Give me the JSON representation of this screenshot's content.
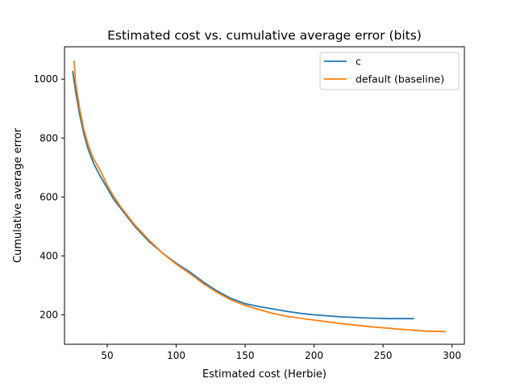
{
  "chart_data": {
    "type": "line",
    "title": "Estimated cost vs. cumulative average error (bits)",
    "xlabel": "Estimated cost (Herbie)",
    "ylabel": "Cumulative average error",
    "xlim": [
      19,
      309
    ],
    "ylim": [
      100,
      1110
    ],
    "xticks": [
      50,
      100,
      150,
      200,
      250,
      300
    ],
    "yticks": [
      200,
      400,
      600,
      800,
      1000
    ],
    "grid": false,
    "legend_position": "top-right",
    "series": [
      {
        "name": "c",
        "color": "#1f77b4",
        "points": [
          [
            25,
            1025
          ],
          [
            27,
            960
          ],
          [
            30,
            880
          ],
          [
            33,
            815
          ],
          [
            36,
            765
          ],
          [
            40,
            715
          ],
          [
            45,
            670
          ],
          [
            50,
            630
          ],
          [
            55,
            590
          ],
          [
            60,
            560
          ],
          [
            65,
            530
          ],
          [
            70,
            500
          ],
          [
            75,
            475
          ],
          [
            80,
            450
          ],
          [
            90,
            410
          ],
          [
            100,
            375
          ],
          [
            110,
            345
          ],
          [
            120,
            310
          ],
          [
            130,
            280
          ],
          [
            140,
            255
          ],
          [
            150,
            238
          ],
          [
            160,
            228
          ],
          [
            170,
            220
          ],
          [
            180,
            212
          ],
          [
            190,
            205
          ],
          [
            200,
            200
          ],
          [
            220,
            193
          ],
          [
            240,
            189
          ],
          [
            255,
            187
          ],
          [
            272,
            187
          ]
        ]
      },
      {
        "name": "default (baseline)",
        "color": "#ff7f0e",
        "points": [
          [
            26,
            1060
          ],
          [
            27,
            990
          ],
          [
            30,
            900
          ],
          [
            33,
            830
          ],
          [
            36,
            780
          ],
          [
            40,
            730
          ],
          [
            45,
            690
          ],
          [
            50,
            640
          ],
          [
            55,
            600
          ],
          [
            60,
            565
          ],
          [
            65,
            535
          ],
          [
            70,
            505
          ],
          [
            75,
            480
          ],
          [
            80,
            455
          ],
          [
            90,
            410
          ],
          [
            100,
            372
          ],
          [
            110,
            340
          ],
          [
            120,
            305
          ],
          [
            130,
            275
          ],
          [
            140,
            250
          ],
          [
            150,
            232
          ],
          [
            160,
            218
          ],
          [
            170,
            205
          ],
          [
            180,
            195
          ],
          [
            200,
            182
          ],
          [
            220,
            170
          ],
          [
            240,
            160
          ],
          [
            260,
            152
          ],
          [
            280,
            145
          ],
          [
            295,
            143
          ]
        ]
      }
    ]
  }
}
